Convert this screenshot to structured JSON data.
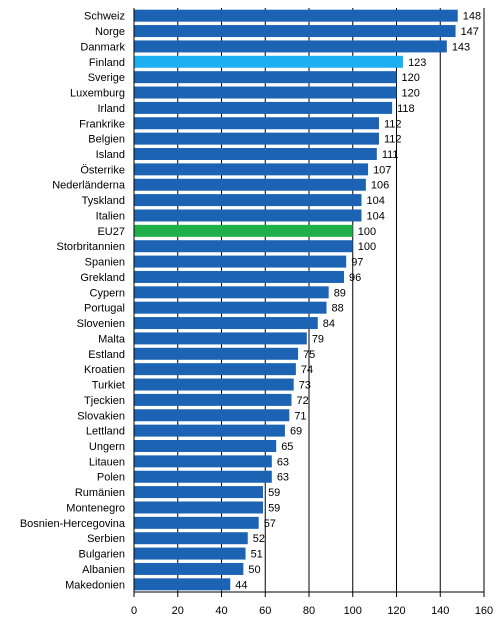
{
  "chart_data": {
    "type": "bar",
    "orientation": "horizontal",
    "title": "",
    "xlabel": "",
    "ylabel": "",
    "xlim": [
      0,
      160
    ],
    "ticks": [
      0,
      20,
      40,
      60,
      80,
      100,
      120,
      140,
      160
    ],
    "grid": "vertical",
    "categories": [
      "Schweiz",
      "Norge",
      "Danmark",
      "Finland",
      "Sverige",
      "Luxemburg",
      "Irland",
      "Frankrike",
      "Belgien",
      "Island",
      "Österrike",
      "Nederländerna",
      "Tyskland",
      "Italien",
      "EU27",
      "Storbritannien",
      "Spanien",
      "Grekland",
      "Cypern",
      "Portugal",
      "Slovenien",
      "Malta",
      "Estland",
      "Kroatien",
      "Turkiet",
      "Tjeckien",
      "Slovakien",
      "Lettland",
      "Ungern",
      "Litauen",
      "Polen",
      "Rumänien",
      "Montenegro",
      "Bosnien-Hercegovina",
      "Serbien",
      "Bulgarien",
      "Albanien",
      "Makedonien"
    ],
    "values": [
      148,
      147,
      143,
      123,
      120,
      120,
      118,
      112,
      112,
      111,
      107,
      106,
      104,
      104,
      100,
      100,
      97,
      96,
      89,
      88,
      84,
      79,
      75,
      74,
      73,
      72,
      71,
      69,
      65,
      63,
      63,
      59,
      59,
      57,
      52,
      51,
      50,
      44
    ],
    "colors": {
      "default": "#1c63b4",
      "Finland": "#1eb0f0",
      "EU27": "#1fb04a"
    }
  }
}
